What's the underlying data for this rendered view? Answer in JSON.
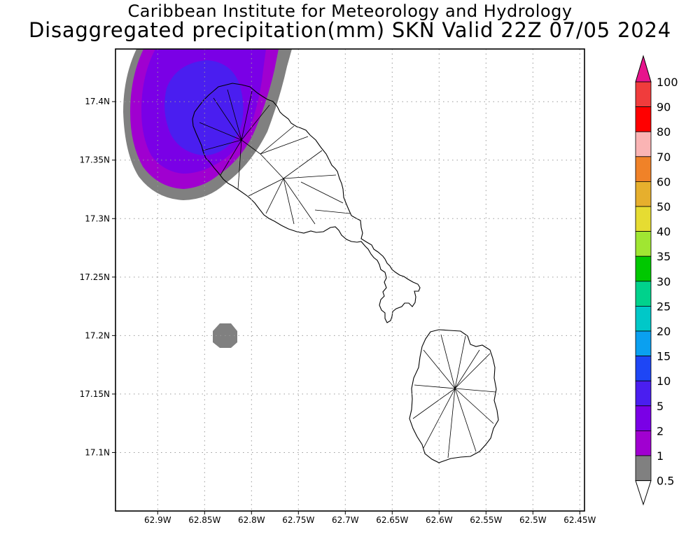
{
  "header": {
    "line1": "Caribbean Institute for Meteorology and Hydrology",
    "line2": "Disaggregated precipitation(mm) SKN Valid 22Z 07/05 2024"
  },
  "map": {
    "region": "St. Kitts and Nevis",
    "lon_range": [
      -62.945,
      -62.445
    ],
    "lat_range": [
      17.05,
      17.445
    ],
    "lat_ticks": [
      "17.1N",
      "17.15N",
      "17.2N",
      "17.25N",
      "17.3N",
      "17.35N",
      "17.4N"
    ],
    "lon_ticks": [
      "62.9W",
      "62.85W",
      "62.8W",
      "62.75W",
      "62.7W",
      "62.65W",
      "62.6W",
      "62.55W",
      "62.5W",
      "62.45W"
    ],
    "gridlines": "dotted"
  },
  "precip_areas": [
    {
      "label": "northwest St. Kitts",
      "levels_mm": [
        0.5,
        1,
        2,
        5
      ],
      "max_level_mm": 5
    },
    {
      "label": "small cell west of Nevis",
      "levels_mm": [
        0.5
      ],
      "max_level_mm": 0.5
    }
  ],
  "colorbar": {
    "levels": [
      {
        "label": "0.5",
        "color": "#ffffff"
      },
      {
        "label": "1",
        "color": "#808080"
      },
      {
        "label": "2",
        "color": "#a000d0"
      },
      {
        "label": "5",
        "color": "#7a00e6"
      },
      {
        "label": "10",
        "color": "#4a1ef0"
      },
      {
        "label": "15",
        "color": "#1e46f5"
      },
      {
        "label": "20",
        "color": "#0aa0f0"
      },
      {
        "label": "25",
        "color": "#00c8c8"
      },
      {
        "label": "30",
        "color": "#00d28c"
      },
      {
        "label": "35",
        "color": "#00c800"
      },
      {
        "label": "40",
        "color": "#a0e632"
      },
      {
        "label": "50",
        "color": "#e6dc32"
      },
      {
        "label": "60",
        "color": "#e6af2d"
      },
      {
        "label": "70",
        "color": "#f08228"
      },
      {
        "label": "80",
        "color": "#fab4b4"
      },
      {
        "label": "90",
        "color": "#ff0000"
      },
      {
        "label": "100",
        "color": "#f03c3c"
      }
    ],
    "top_arrow_color": "#e6148c"
  }
}
